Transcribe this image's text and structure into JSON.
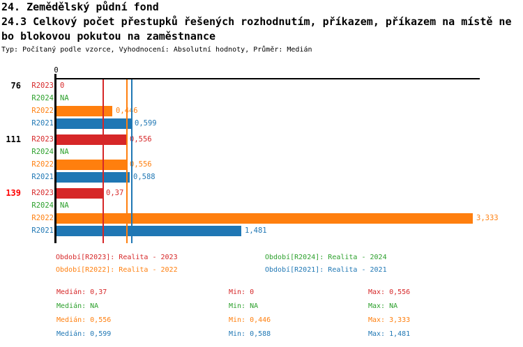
{
  "header": {
    "title": "24. Zemědělský půdní fond",
    "subtitle_line1": "24.3 Celkový počet přestupků řešených rozhodnutím, příkazem, příkazem na místě ne",
    "subtitle_line2": "bo blokovou pokutou na zaměstnance",
    "meta": "Typ: Počítaný podle vzorce, Vyhodnocení: Absolutní hodnoty, Průměr: Medián"
  },
  "chart_data": {
    "type": "bar",
    "orientation": "horizontal",
    "title": "24.3 Celkový počet přestupků řešených rozhodnutím, příkazem, příkazem na místě nebo blokovou pokutou na zaměstnance",
    "axis": {
      "tick_label": "0",
      "xlim": [
        0,
        3.39
      ],
      "grid": false
    },
    "series_order": [
      "R2023",
      "R2024",
      "R2022",
      "R2021"
    ],
    "series_colors": {
      "R2023": "#d62728",
      "R2024": "#2ca02c",
      "R2022": "#ff7f0e",
      "R2021": "#1f77b4"
    },
    "groups": [
      {
        "label": "76",
        "label_color": "#000000",
        "bars": [
          {
            "series": "R2023",
            "value": 0,
            "display": "0"
          },
          {
            "series": "R2024",
            "value": null,
            "display": "NA"
          },
          {
            "series": "R2022",
            "value": 0.446,
            "display": "0,446"
          },
          {
            "series": "R2021",
            "value": 0.599,
            "display": "0,599"
          }
        ]
      },
      {
        "label": "111",
        "label_color": "#000000",
        "bars": [
          {
            "series": "R2023",
            "value": 0.556,
            "display": "0,556"
          },
          {
            "series": "R2024",
            "value": null,
            "display": "NA"
          },
          {
            "series": "R2022",
            "value": 0.556,
            "display": "0,556"
          },
          {
            "series": "R2021",
            "value": 0.588,
            "display": "0,588"
          }
        ]
      },
      {
        "label": "139",
        "label_color": "#ff0000",
        "bars": [
          {
            "series": "R2023",
            "value": 0.37,
            "display": "0,37"
          },
          {
            "series": "R2024",
            "value": null,
            "display": "NA"
          },
          {
            "series": "R2022",
            "value": 3.333,
            "display": "3,333"
          },
          {
            "series": "R2021",
            "value": 1.481,
            "display": "1,481"
          }
        ]
      }
    ],
    "median_lines": [
      {
        "series": "R2023",
        "value": 0.37,
        "color": "#d62728"
      },
      {
        "series": "R2022",
        "value": 0.556,
        "color": "#ff7f0e"
      },
      {
        "series": "R2021",
        "value": 0.599,
        "color": "#1f77b4"
      }
    ],
    "summary_stats": {
      "R2023": {
        "median": 0.37,
        "min": 0,
        "max": 0.556
      },
      "R2024": {
        "median": null,
        "min": null,
        "max": null
      },
      "R2022": {
        "median": 0.556,
        "min": 0.446,
        "max": 3.333
      },
      "R2021": {
        "median": 0.599,
        "min": 0.588,
        "max": 1.481
      }
    }
  },
  "legend": {
    "items": [
      {
        "series": "R2023",
        "label": "Období[R2023]: Realita - 2023",
        "color": "#d62728"
      },
      {
        "series": "R2024",
        "label": "Období[R2024]: Realita - 2024",
        "color": "#2ca02c"
      },
      {
        "series": "R2022",
        "label": "Období[R2022]: Realita - 2022",
        "color": "#ff7f0e"
      },
      {
        "series": "R2021",
        "label": "Období[R2021]: Realita - 2021",
        "color": "#1f77b4"
      }
    ]
  },
  "stats": {
    "rows": [
      {
        "series": "R2023",
        "color": "#d62728",
        "median": "Medián: 0,37",
        "min": "Min: 0",
        "max": "Max: 0,556"
      },
      {
        "series": "R2024",
        "color": "#2ca02c",
        "median": "Medián: NA",
        "min": "Min: NA",
        "max": "Max: NA"
      },
      {
        "series": "R2022",
        "color": "#ff7f0e",
        "median": "Medián: 0,556",
        "min": "Min: 0,446",
        "max": "Max: 3,333"
      },
      {
        "series": "R2021",
        "color": "#1f77b4",
        "median": "Medián: 0,599",
        "min": "Min: 0,588",
        "max": "Max: 1,481"
      }
    ]
  }
}
